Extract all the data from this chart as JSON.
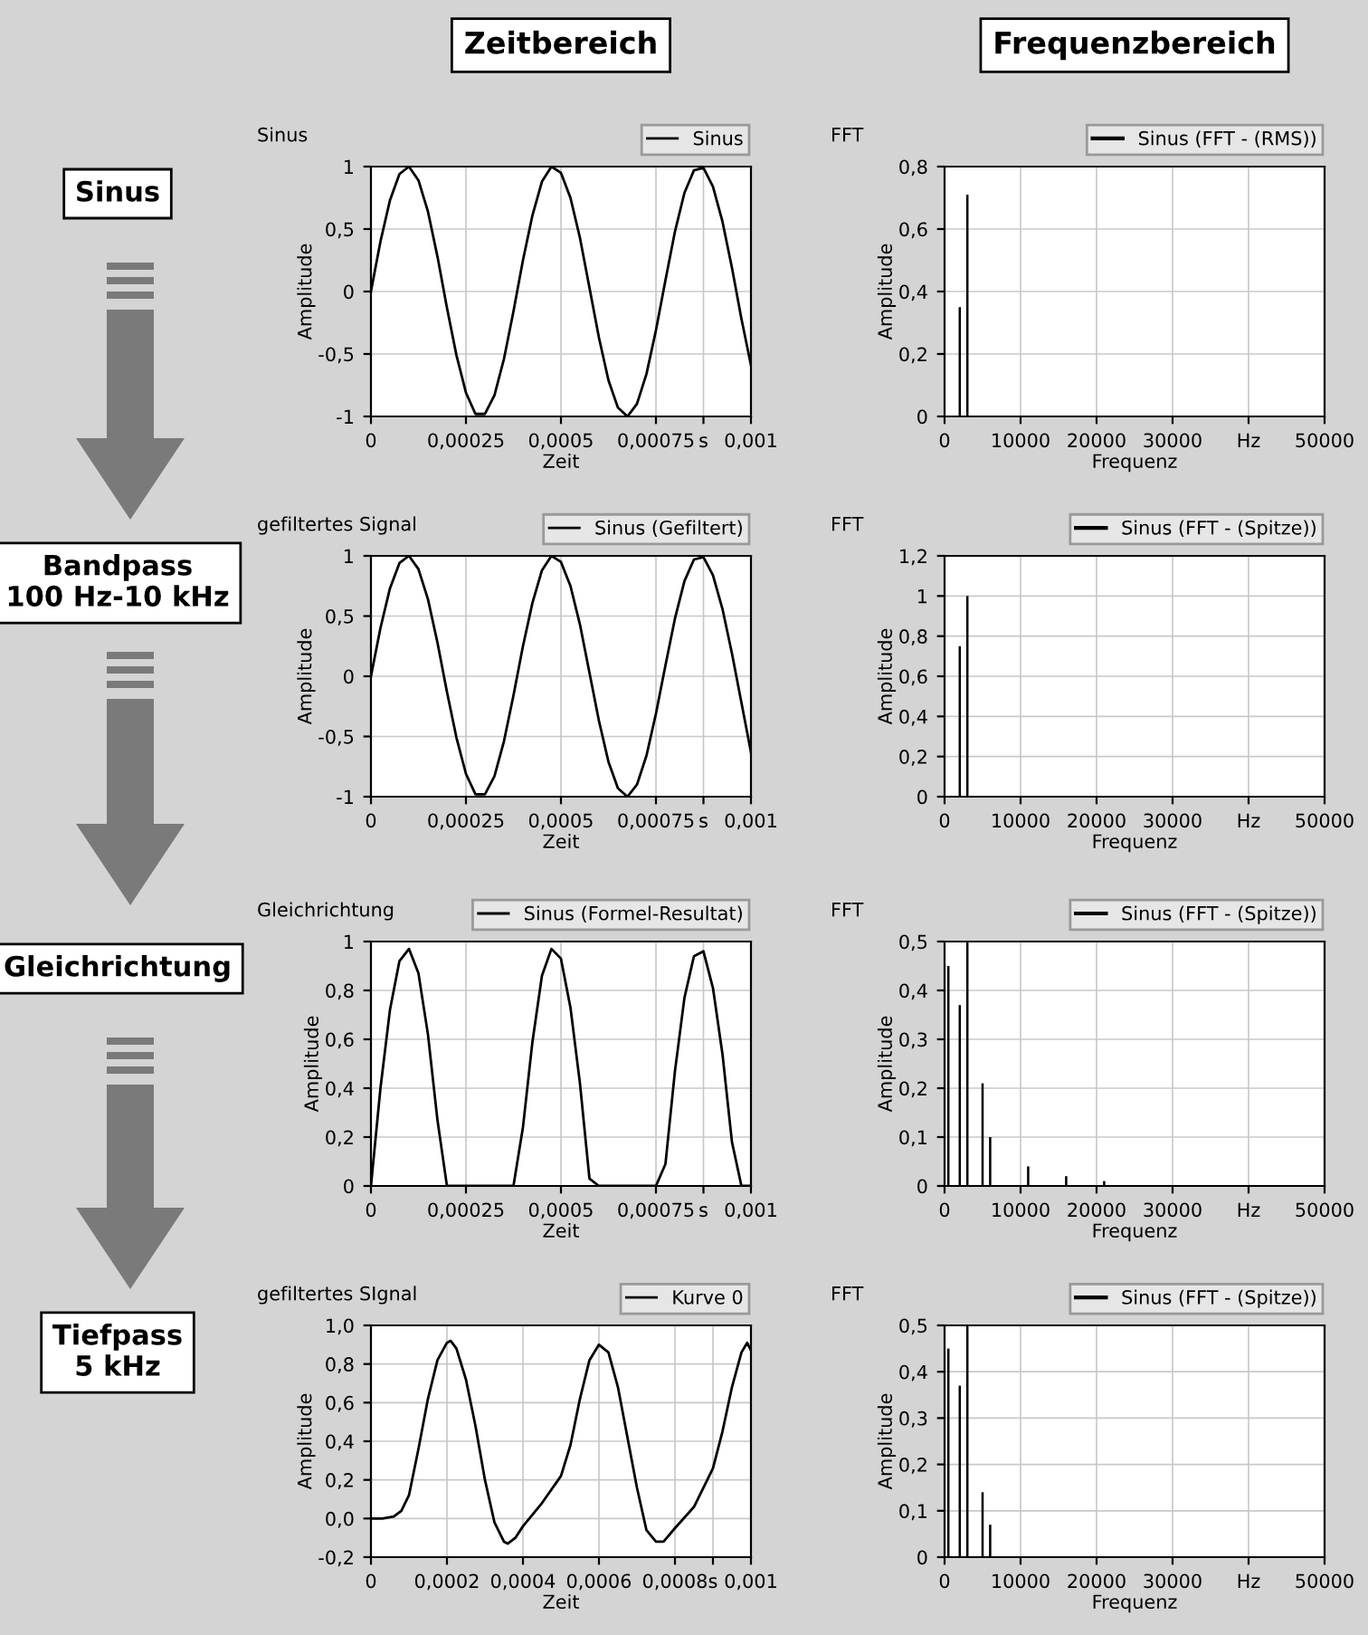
{
  "chart_data": [
    {
      "type": "line",
      "title": "Sinus",
      "xlabel": "Zeit",
      "ylabel": "Amplitude",
      "annotations": [
        "Zeitbereich",
        "Sinus"
      ],
      "legend": "top right",
      "grid": true,
      "x": [
        0,
        2.5e-05,
        5e-05,
        7.5e-05,
        0.0001,
        0.000125,
        0.00015,
        0.000175,
        0.0002,
        0.000225,
        0.00025,
        0.000275,
        0.0003,
        0.000325,
        0.00035,
        0.000375,
        0.0004,
        0.000425,
        0.00045,
        0.000475,
        0.0005,
        0.000525,
        0.00055,
        0.000575,
        0.0006,
        0.000625,
        0.00065,
        0.000675,
        0.0007,
        0.000725,
        0.00075,
        0.000775,
        0.0008,
        0.000825,
        0.00085,
        0.000875,
        0.0009,
        0.000925,
        0.00095,
        0.000975,
        0.001
      ],
      "series": [
        {
          "name": "Sinus",
          "color": "#000000",
          "values": [
            0,
            0.4,
            0.73,
            0.94,
            1.0,
            0.89,
            0.64,
            0.28,
            -0.13,
            -0.51,
            -0.81,
            -0.98,
            -0.98,
            -0.83,
            -0.54,
            -0.16,
            0.25,
            0.61,
            0.88,
            1.0,
            0.95,
            0.75,
            0.43,
            0.03,
            -0.37,
            -0.71,
            -0.93,
            -1.0,
            -0.9,
            -0.66,
            -0.31,
            0.09,
            0.48,
            0.79,
            0.97,
            0.99,
            0.84,
            0.56,
            0.19,
            -0.22,
            -0.59
          ]
        }
      ],
      "xlim": [
        0,
        0.001
      ],
      "xticks": [
        0,
        {
          "value": 0.00025,
          "label": "0,00025"
        },
        {
          "value": 0.0005,
          "label": "0,0005"
        },
        {
          "value": 0.00075,
          "label": "0,00075"
        },
        {
          "value": 0.000875,
          "label": "s"
        },
        {
          "value": 0.001,
          "label": "0,001"
        }
      ],
      "ylim": [
        -1,
        1
      ],
      "yticks": [
        -1,
        {
          "value": -0.5,
          "label": "-0,5"
        },
        0,
        {
          "value": 0.5,
          "label": "0,5"
        },
        1
      ]
    },
    {
      "type": "bar",
      "title": "FFT",
      "xlabel": "Frequenz",
      "ylabel": "Amplitude",
      "annotations": [
        "Frequenzbereich"
      ],
      "legend": "top right",
      "grid": true,
      "x": [
        2000,
        3000
      ],
      "series": [
        {
          "name": "Sinus (FFT - (RMS))",
          "color": "#000000",
          "values": [
            0.35,
            0.71
          ]
        }
      ],
      "xlim": [
        0,
        50000
      ],
      "xticks": [
        0,
        10000,
        20000,
        30000,
        {
          "value": 40000,
          "label": "Hz"
        },
        50000
      ],
      "ylim": [
        0,
        0.8
      ],
      "yticks": [
        0,
        {
          "value": 0.2,
          "label": "0,2"
        },
        {
          "value": 0.4,
          "label": "0,4"
        },
        {
          "value": 0.6,
          "label": "0,6"
        },
        {
          "value": 0.8,
          "label": "0,8"
        }
      ]
    },
    {
      "type": "line",
      "title": "gefiltertes Signal",
      "xlabel": "Zeit",
      "ylabel": "Amplitude",
      "annotations": [
        "Bandpass\n100 Hz-10 kHz"
      ],
      "legend": "top right",
      "grid": true,
      "x": [
        0,
        2.5e-05,
        5e-05,
        7.5e-05,
        0.0001,
        0.000125,
        0.00015,
        0.000175,
        0.0002,
        0.000225,
        0.00025,
        0.000275,
        0.0003,
        0.000325,
        0.00035,
        0.000375,
        0.0004,
        0.000425,
        0.00045,
        0.000475,
        0.0005,
        0.000525,
        0.00055,
        0.000575,
        0.0006,
        0.000625,
        0.00065,
        0.000675,
        0.0007,
        0.000725,
        0.00075,
        0.000775,
        0.0008,
        0.000825,
        0.00085,
        0.000875,
        0.0009,
        0.000925,
        0.00095,
        0.000975,
        0.001
      ],
      "series": [
        {
          "name": "Sinus (Gefiltert)",
          "color": "#000000",
          "values": [
            0,
            0.4,
            0.73,
            0.94,
            1.0,
            0.89,
            0.64,
            0.28,
            -0.13,
            -0.51,
            -0.81,
            -0.98,
            -0.98,
            -0.83,
            -0.54,
            -0.16,
            0.25,
            0.61,
            0.88,
            1.0,
            0.95,
            0.75,
            0.43,
            0.03,
            -0.37,
            -0.71,
            -0.93,
            -1.0,
            -0.9,
            -0.66,
            -0.31,
            0.09,
            0.48,
            0.79,
            0.97,
            0.99,
            0.84,
            0.56,
            0.19,
            -0.22,
            -0.63
          ]
        }
      ],
      "xlim": [
        0,
        0.001
      ],
      "xticks": [
        0,
        {
          "value": 0.00025,
          "label": "0,00025"
        },
        {
          "value": 0.0005,
          "label": "0,0005"
        },
        {
          "value": 0.00075,
          "label": "0,00075"
        },
        {
          "value": 0.000875,
          "label": "s"
        },
        {
          "value": 0.001,
          "label": "0,001"
        }
      ],
      "ylim": [
        -1,
        1
      ],
      "yticks": [
        -1,
        {
          "value": -0.5,
          "label": "-0,5"
        },
        0,
        {
          "value": 0.5,
          "label": "0,5"
        },
        1
      ]
    },
    {
      "type": "bar",
      "title": "FFT",
      "xlabel": "Frequenz",
      "ylabel": "Amplitude",
      "legend": "top right",
      "grid": true,
      "x": [
        2000,
        3000
      ],
      "series": [
        {
          "name": "Sinus (FFT - (Spitze))",
          "color": "#000000",
          "values": [
            0.75,
            1.0
          ]
        }
      ],
      "xlim": [
        0,
        50000
      ],
      "xticks": [
        0,
        10000,
        20000,
        30000,
        {
          "value": 40000,
          "label": "Hz"
        },
        50000
      ],
      "ylim": [
        0,
        1.2
      ],
      "yticks": [
        0,
        {
          "value": 0.2,
          "label": "0,2"
        },
        {
          "value": 0.4,
          "label": "0,4"
        },
        {
          "value": 0.6,
          "label": "0,6"
        },
        {
          "value": 0.8,
          "label": "0,8"
        },
        1,
        {
          "value": 1.2,
          "label": "1,2"
        }
      ]
    },
    {
      "type": "line",
      "title": "Gleichrichtung",
      "xlabel": "Zeit",
      "ylabel": "Amplitude",
      "annotations": [
        "Gleichrichtung"
      ],
      "legend": "top right",
      "grid": true,
      "x": [
        0,
        2.5e-05,
        5e-05,
        7.5e-05,
        0.0001,
        0.000125,
        0.00015,
        0.000175,
        0.0002,
        0.000225,
        0.00025,
        0.000275,
        0.0003,
        0.000325,
        0.00035,
        0.000375,
        0.0004,
        0.000425,
        0.00045,
        0.000475,
        0.0005,
        0.000525,
        0.00055,
        0.000575,
        0.0006,
        0.000625,
        0.00065,
        0.000675,
        0.0007,
        0.000725,
        0.00075,
        0.000775,
        0.0008,
        0.000825,
        0.00085,
        0.000875,
        0.0009,
        0.000925,
        0.00095,
        0.000975,
        0.001
      ],
      "series": [
        {
          "name": "Sinus (Formel-Resultat)",
          "color": "#000000",
          "values": [
            0,
            0.4,
            0.72,
            0.92,
            0.97,
            0.87,
            0.62,
            0.27,
            0,
            0,
            0,
            0,
            0,
            0,
            0,
            0,
            0.24,
            0.59,
            0.86,
            0.97,
            0.93,
            0.73,
            0.42,
            0.03,
            0,
            0,
            0,
            0,
            0,
            0,
            0,
            0.09,
            0.47,
            0.77,
            0.94,
            0.96,
            0.81,
            0.54,
            0.18,
            0,
            0
          ]
        }
      ],
      "xlim": [
        0,
        0.001
      ],
      "xticks": [
        0,
        {
          "value": 0.00025,
          "label": "0,00025"
        },
        {
          "value": 0.0005,
          "label": "0,0005"
        },
        {
          "value": 0.00075,
          "label": "0,00075"
        },
        {
          "value": 0.000875,
          "label": "s"
        },
        {
          "value": 0.001,
          "label": "0,001"
        }
      ],
      "ylim": [
        0,
        1
      ],
      "yticks": [
        0,
        {
          "value": 0.2,
          "label": "0,2"
        },
        {
          "value": 0.4,
          "label": "0,4"
        },
        {
          "value": 0.6,
          "label": "0,6"
        },
        {
          "value": 0.8,
          "label": "0,8"
        },
        1
      ]
    },
    {
      "type": "bar",
      "title": "FFT",
      "xlabel": "Frequenz",
      "ylabel": "Amplitude",
      "legend": "top right",
      "grid": true,
      "x": [
        500,
        2000,
        3000,
        5000,
        6000,
        11000,
        16000,
        21000
      ],
      "series": [
        {
          "name": "Sinus (FFT - (Spitze))",
          "color": "#000000",
          "values": [
            0.45,
            0.37,
            0.5,
            0.21,
            0.1,
            0.04,
            0.02,
            0.01
          ]
        }
      ],
      "xlim": [
        0,
        50000
      ],
      "xticks": [
        0,
        10000,
        20000,
        30000,
        {
          "value": 40000,
          "label": "Hz"
        },
        50000
      ],
      "ylim": [
        0,
        0.5
      ],
      "yticks": [
        0,
        {
          "value": 0.1,
          "label": "0,1"
        },
        {
          "value": 0.2,
          "label": "0,2"
        },
        {
          "value": 0.3,
          "label": "0,3"
        },
        {
          "value": 0.4,
          "label": "0,4"
        },
        {
          "value": 0.5,
          "label": "0,5"
        }
      ]
    },
    {
      "type": "line",
      "title": "gefiltertes SIgnal",
      "xlabel": "Zeit",
      "ylabel": "Amplitude",
      "annotations": [
        "Tiefpass\n5 kHz"
      ],
      "legend": "top right",
      "grid": true,
      "x": [
        0,
        3e-05,
        6e-05,
        8e-05,
        0.0001,
        0.000125,
        0.00015,
        0.000175,
        0.0002,
        0.00021,
        0.000225,
        0.00025,
        0.000275,
        0.0003,
        0.000325,
        0.00035,
        0.00036,
        0.00038,
        0.0004,
        0.00045,
        0.0005,
        0.000525,
        0.00055,
        0.000575,
        0.0006,
        0.000625,
        0.00065,
        0.000675,
        0.0007,
        0.000725,
        0.00075,
        0.00077,
        0.0008,
        0.00085,
        0.0009,
        0.000925,
        0.00095,
        0.000975,
        0.00099,
        0.001
      ],
      "series": [
        {
          "name": "Kurve 0",
          "color": "#000000",
          "values": [
            0,
            0,
            0.01,
            0.04,
            0.12,
            0.36,
            0.62,
            0.82,
            0.91,
            0.92,
            0.88,
            0.72,
            0.48,
            0.2,
            -0.02,
            -0.12,
            -0.13,
            -0.1,
            -0.04,
            0.08,
            0.22,
            0.38,
            0.62,
            0.82,
            0.9,
            0.86,
            0.68,
            0.42,
            0.16,
            -0.06,
            -0.12,
            -0.12,
            -0.05,
            0.06,
            0.26,
            0.45,
            0.68,
            0.86,
            0.91,
            0.87
          ]
        }
      ],
      "xlim": [
        0,
        0.001
      ],
      "xticks": [
        0,
        {
          "value": 0.0002,
          "label": "0,0002"
        },
        {
          "value": 0.0004,
          "label": "0,0004"
        },
        {
          "value": 0.0006,
          "label": "0,0006"
        },
        {
          "value": 0.0008,
          "label": "0,0008"
        },
        {
          "value": 0.0009,
          "label": "s"
        },
        {
          "value": 0.001,
          "label": "0,001"
        }
      ],
      "ylim": [
        -0.2,
        1.0
      ],
      "yticks": [
        {
          "value": -0.2,
          "label": "-0,2"
        },
        {
          "value": 0,
          "label": "0,0"
        },
        {
          "value": 0.2,
          "label": "0,2"
        },
        {
          "value": 0.4,
          "label": "0,4"
        },
        {
          "value": 0.6,
          "label": "0,6"
        },
        {
          "value": 0.8,
          "label": "0,8"
        },
        {
          "value": 1.0,
          "label": "1,0"
        }
      ]
    },
    {
      "type": "bar",
      "title": "FFT",
      "xlabel": "Frequenz",
      "ylabel": "Amplitude",
      "legend": "top right",
      "grid": true,
      "x": [
        500,
        2000,
        3000,
        5000,
        6000
      ],
      "series": [
        {
          "name": "Sinus (FFT - (Spitze))",
          "color": "#000000",
          "values": [
            0.45,
            0.37,
            0.5,
            0.14,
            0.07
          ]
        }
      ],
      "xlim": [
        0,
        50000
      ],
      "xticks": [
        0,
        10000,
        20000,
        30000,
        {
          "value": 40000,
          "label": "Hz"
        },
        50000
      ],
      "ylim": [
        0,
        0.5
      ],
      "yticks": [
        0,
        {
          "value": 0.1,
          "label": "0,1"
        },
        {
          "value": 0.2,
          "label": "0,2"
        },
        {
          "value": 0.3,
          "label": "0,3"
        },
        {
          "value": 0.4,
          "label": "0,4"
        },
        {
          "value": 0.5,
          "label": "0,5"
        }
      ]
    }
  ]
}
